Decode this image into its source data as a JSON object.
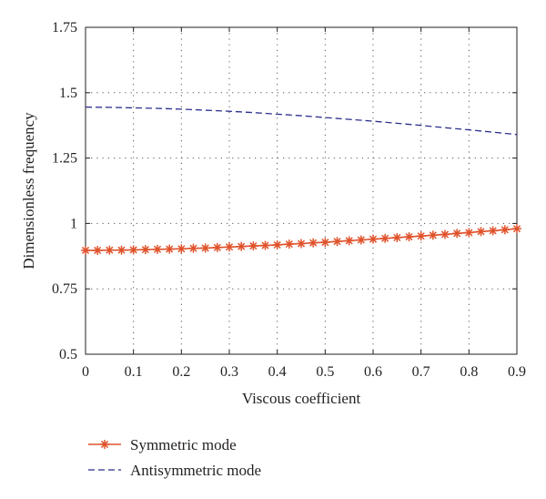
{
  "chart_data": {
    "type": "line",
    "xlabel": "Viscous coefficient",
    "ylabel": "Dimensionless frequency",
    "xlim": [
      0,
      0.9
    ],
    "ylim": [
      0.5,
      1.75
    ],
    "xticks": [
      0,
      0.1,
      0.2,
      0.3,
      0.4,
      0.5,
      0.6,
      0.7,
      0.8,
      0.9
    ],
    "yticks": [
      0.5,
      0.75,
      1,
      1.25,
      1.5,
      1.75
    ],
    "xtick_labels": [
      "0",
      "0.1",
      "0.2",
      "0.3",
      "0.4",
      "0.5",
      "0.6",
      "0.7",
      "0.8",
      "0.9"
    ],
    "ytick_labels": [
      "0.5",
      "0.75",
      "1",
      "1.25",
      "1.5",
      "1.75"
    ],
    "grid": true,
    "legend_position": "below",
    "series": [
      {
        "name": "Symmetric mode",
        "color": "#e0522b",
        "line_style": "solid",
        "marker": "asterisk",
        "x": [
          0,
          0.025,
          0.05,
          0.075,
          0.1,
          0.125,
          0.15,
          0.175,
          0.2,
          0.225,
          0.25,
          0.275,
          0.3,
          0.325,
          0.35,
          0.375,
          0.4,
          0.425,
          0.45,
          0.475,
          0.5,
          0.525,
          0.55,
          0.575,
          0.6,
          0.625,
          0.65,
          0.675,
          0.7,
          0.725,
          0.75,
          0.775,
          0.8,
          0.825,
          0.85,
          0.875,
          0.9
        ],
        "y": [
          0.897,
          0.897,
          0.898,
          0.898,
          0.899,
          0.9,
          0.901,
          0.902,
          0.903,
          0.905,
          0.906,
          0.908,
          0.91,
          0.912,
          0.914,
          0.916,
          0.918,
          0.921,
          0.923,
          0.926,
          0.928,
          0.931,
          0.934,
          0.937,
          0.94,
          0.943,
          0.946,
          0.949,
          0.952,
          0.955,
          0.958,
          0.962,
          0.965,
          0.969,
          0.972,
          0.976,
          0.98
        ]
      },
      {
        "name": "Antisymmetric mode",
        "color": "#2b2f8c",
        "line_style": "dashed",
        "marker": "none",
        "x": [
          0,
          0.05,
          0.1,
          0.15,
          0.2,
          0.25,
          0.3,
          0.35,
          0.4,
          0.45,
          0.5,
          0.55,
          0.6,
          0.65,
          0.7,
          0.75,
          0.8,
          0.85,
          0.9
        ],
        "y": [
          1.445,
          1.444,
          1.442,
          1.44,
          1.437,
          1.433,
          1.429,
          1.424,
          1.418,
          1.412,
          1.405,
          1.398,
          1.391,
          1.383,
          1.375,
          1.366,
          1.358,
          1.349,
          1.34
        ]
      }
    ]
  }
}
